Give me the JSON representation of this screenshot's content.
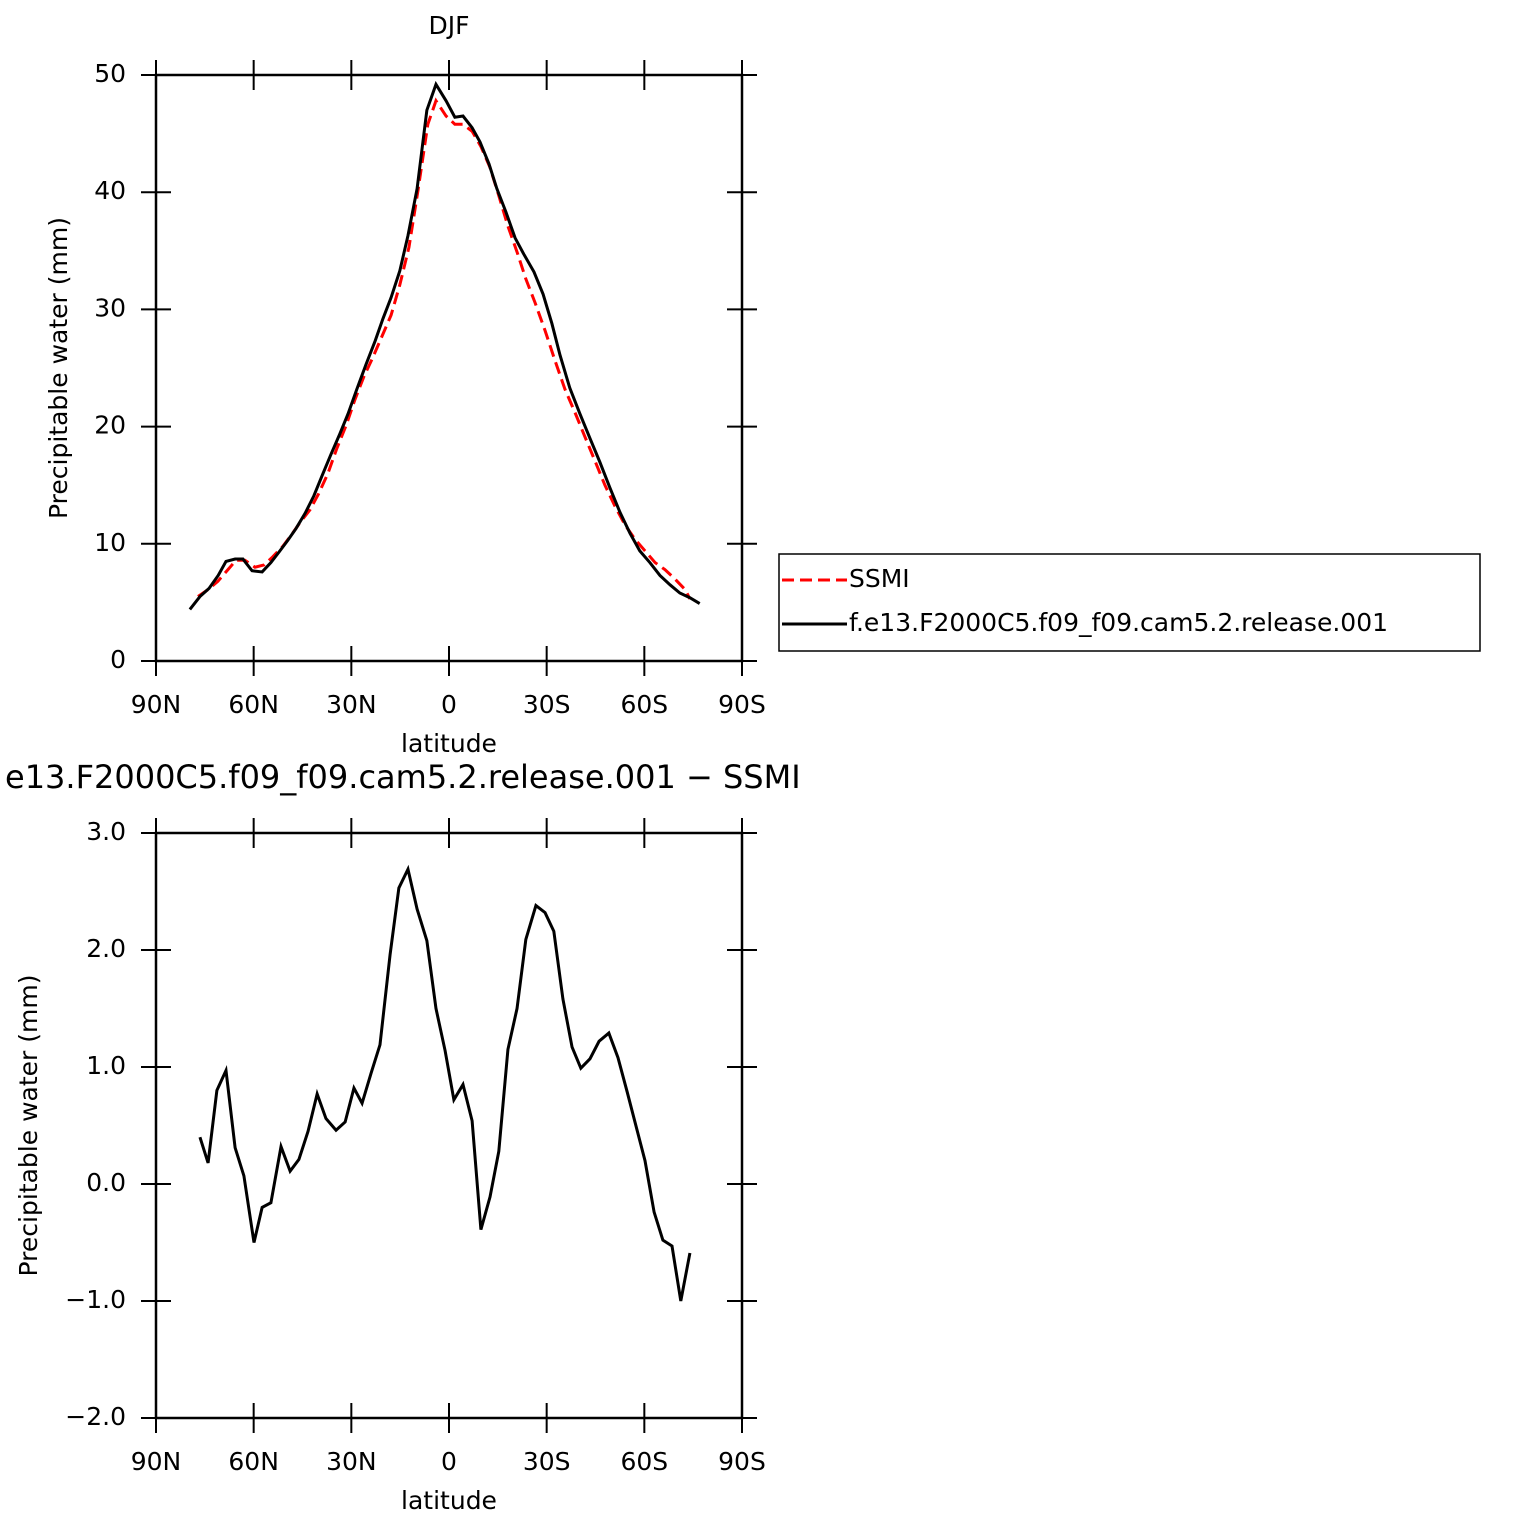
{
  "chart_data": [
    {
      "type": "line",
      "title": "DJF",
      "y_label": "Precipitable water (mm)",
      "x_label": "latitude",
      "xlim": [
        90,
        -90
      ],
      "xticks": [
        {
          "value": 90,
          "label": "90N"
        },
        {
          "value": 60,
          "label": "60N"
        },
        {
          "value": 30,
          "label": "30N"
        },
        0,
        {
          "value": -30,
          "label": "30S"
        },
        {
          "value": -60,
          "label": "60S"
        },
        {
          "value": -90,
          "label": "90S"
        }
      ],
      "ylim": [
        0,
        50
      ],
      "yticks": [
        0,
        10,
        20,
        30,
        40,
        50
      ],
      "legend": "right",
      "series": [
        {
          "name": "SSMI",
          "color": "#ff0000",
          "line_style": "dashed",
          "x": [
            77.1,
            74.0,
            71.0,
            67.9,
            65.4,
            62.7,
            59.6,
            56.8,
            54.1,
            51.0,
            48.3,
            45.8,
            42.7,
            40.0,
            37.2,
            34.5,
            31.6,
            28.9,
            26.1,
            23.4,
            20.6,
            17.8,
            15.1,
            12.3,
            9.5,
            6.5,
            4.0,
            0.9,
            -1.8,
            -4.3,
            -7.1,
            -9.8,
            -12.6,
            -15.3,
            -18.1,
            -20.9,
            -23.6,
            -26.4,
            -29.5,
            -32.6,
            -35.6,
            -38.7,
            -41.8,
            -44.8,
            -47.9,
            -51.0,
            -54.1,
            -57.1,
            -60.2,
            -63.3,
            -66.3,
            -69.4,
            -72.5,
            -74.0
          ],
          "values": [
            5.5,
            6.1,
            6.8,
            7.8,
            8.6,
            8.6,
            8.0,
            8.2,
            8.9,
            9.8,
            10.8,
            11.8,
            12.9,
            14.3,
            16.0,
            18.1,
            20.1,
            22.3,
            24.3,
            25.9,
            27.7,
            29.5,
            32.1,
            35.3,
            40.2,
            45.8,
            47.8,
            46.5,
            45.8,
            45.8,
            45.2,
            43.9,
            42.1,
            39.7,
            37.1,
            34.9,
            32.6,
            30.6,
            28.2,
            25.6,
            23.2,
            21.2,
            19.1,
            17.1,
            15.0,
            13.2,
            11.6,
            10.4,
            9.4,
            8.4,
            7.8,
            7.0,
            6.1,
            5.3
          ]
        },
        {
          "name": "f.e13.F2000C5.f09_f09.cam5.2.release.001",
          "color": "#000000",
          "line_style": "solid",
          "x": [
            79.6,
            76.5,
            73.7,
            70.9,
            68.5,
            65.7,
            63.3,
            60.5,
            57.4,
            54.7,
            52.2,
            49.5,
            47.0,
            44.2,
            41.5,
            39.0,
            36.3,
            33.5,
            31.0,
            28.3,
            25.5,
            22.7,
            20.3,
            17.8,
            15.1,
            12.6,
            9.8,
            6.8,
            4.0,
            0.9,
            -1.8,
            -4.3,
            -7.1,
            -9.5,
            -12.3,
            -14.7,
            -17.5,
            -20.3,
            -23.0,
            -26.1,
            -28.9,
            -31.6,
            -34.1,
            -37.1,
            -40.2,
            -43.3,
            -46.3,
            -49.4,
            -52.5,
            -55.6,
            -58.6,
            -61.7,
            -64.8,
            -67.9,
            -70.9,
            -74.0,
            -77.0
          ],
          "values": [
            4.4,
            5.5,
            6.2,
            7.3,
            8.5,
            8.7,
            8.7,
            7.7,
            7.6,
            8.4,
            9.3,
            10.3,
            11.3,
            12.6,
            14.1,
            15.8,
            17.6,
            19.4,
            21.1,
            23.2,
            25.3,
            27.3,
            29.2,
            31.0,
            33.3,
            36.3,
            40.3,
            47.0,
            49.2,
            47.8,
            46.4,
            46.5,
            45.5,
            44.3,
            42.4,
            40.3,
            38.3,
            36.1,
            34.7,
            33.2,
            31.3,
            28.8,
            26.1,
            23.3,
            21.1,
            19.0,
            17.0,
            14.8,
            12.7,
            10.9,
            9.4,
            8.4,
            7.3,
            6.5,
            5.8,
            5.4,
            4.9
          ]
        }
      ]
    },
    {
      "type": "line",
      "title": "e13.F2000C5.f09_f09.cam5.2.release.001 − SSMI",
      "y_label": "Precipitable water (mm)",
      "x_label": "latitude",
      "xlim": [
        90,
        -90
      ],
      "xticks": [
        {
          "value": 90,
          "label": "90N"
        },
        {
          "value": 60,
          "label": "60N"
        },
        {
          "value": 30,
          "label": "30N"
        },
        0,
        {
          "value": -30,
          "label": "30S"
        },
        {
          "value": -60,
          "label": "60S"
        },
        {
          "value": -90,
          "label": "90S"
        }
      ],
      "ylim": [
        -2,
        3
      ],
      "yticks": [
        {
          "value": -2,
          "label": "−2.0"
        },
        {
          "value": -1,
          "label": "−1.0"
        },
        {
          "value": 0,
          "label": "0.0"
        },
        {
          "value": 1,
          "label": "1.0"
        },
        {
          "value": 2,
          "label": "2.0"
        },
        {
          "value": 3,
          "label": "3.0"
        }
      ],
      "color": "#000000",
      "x": [
        76.5,
        74.0,
        71.3,
        68.5,
        65.7,
        63.0,
        59.9,
        57.4,
        54.7,
        51.6,
        48.8,
        46.1,
        43.3,
        40.5,
        37.8,
        34.7,
        31.9,
        29.2,
        26.7,
        23.9,
        21.2,
        18.1,
        15.4,
        12.6,
        9.8,
        6.8,
        4.0,
        1.2,
        -1.5,
        -4.3,
        -7.1,
        -9.8,
        -12.6,
        -15.3,
        -18.1,
        -20.9,
        -23.6,
        -26.7,
        -29.5,
        -32.2,
        -35.0,
        -37.8,
        -40.5,
        -43.3,
        -46.1,
        -49.1,
        -51.9,
        -54.7,
        -57.4,
        -60.2,
        -63.0,
        -65.7,
        -68.5,
        -71.2,
        -74.0
      ],
      "values": [
        0.4,
        0.18,
        0.8,
        0.97,
        0.31,
        0.07,
        -0.5,
        -0.2,
        -0.16,
        0.32,
        0.11,
        0.21,
        0.45,
        0.77,
        0.56,
        0.46,
        0.53,
        0.82,
        0.69,
        0.95,
        1.19,
        1.96,
        2.53,
        2.69,
        2.35,
        2.08,
        1.5,
        1.14,
        0.72,
        0.85,
        0.54,
        -0.39,
        -0.11,
        0.28,
        1.15,
        1.5,
        2.09,
        2.38,
        2.32,
        2.16,
        1.58,
        1.17,
        0.99,
        1.07,
        1.22,
        1.29,
        1.08,
        0.79,
        0.5,
        0.2,
        -0.24,
        -0.48,
        -0.53,
        -1.0,
        -0.59
      ]
    }
  ]
}
